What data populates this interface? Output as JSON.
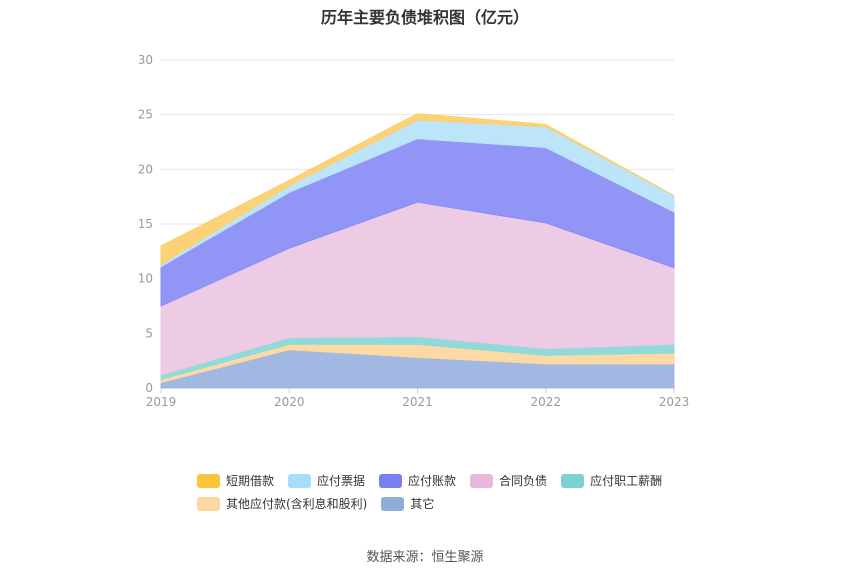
{
  "title": "历年主要负债堆积图（亿元）",
  "source": "数据来源：恒生聚源",
  "chart_data": {
    "type": "area",
    "stacked": true,
    "title": "历年主要负债堆积图（亿元）",
    "x": [
      "2019",
      "2020",
      "2021",
      "2022",
      "2023"
    ],
    "ylim": [
      0,
      30
    ],
    "yticks": [
      0,
      5,
      10,
      15,
      20,
      25,
      30
    ],
    "grid": true,
    "legend_position": "bottom",
    "series": [
      {
        "name": "其它",
        "color": "#9bb4e0",
        "values": [
          0.5,
          3.5,
          2.8,
          2.2,
          2.2
        ]
      },
      {
        "name": "其他应付款(含利息和股利)",
        "color": "#fdd8a0",
        "values": [
          0.3,
          0.5,
          1.2,
          0.8,
          1.0
        ]
      },
      {
        "name": "应付职工薪酬",
        "color": "#8bd8d8",
        "values": [
          0.4,
          0.6,
          0.7,
          0.6,
          0.8
        ]
      },
      {
        "name": "合同负债",
        "color": "#ecc8e4",
        "values": [
          6.3,
          8.2,
          12.3,
          11.5,
          7.0
        ]
      },
      {
        "name": "应付账款",
        "color": "#8a8ff5",
        "values": [
          3.6,
          5.1,
          5.8,
          6.9,
          5.1
        ]
      },
      {
        "name": "应付票据",
        "color": "#b8e4fa",
        "values": [
          0.2,
          0.6,
          1.7,
          1.9,
          1.5
        ]
      },
      {
        "name": "短期借款",
        "color": "#fbd070",
        "values": [
          1.7,
          0.5,
          0.6,
          0.2,
          0.0
        ]
      }
    ]
  },
  "legend_colors": {
    "短期借款": "#fbc43a",
    "应付票据": "#a6ddf8",
    "应付账款": "#7a7ff3",
    "合同负债": "#e9b8de",
    "应付职工薪酬": "#7dd3d3",
    "其他应付款(含利息和股利)": "#fdd8a0",
    "其它": "#8fadd9"
  },
  "legend_order": [
    "短期借款",
    "应付票据",
    "应付账款",
    "合同负债",
    "应付职工薪酬",
    "其他应付款(含利息和股利)",
    "其它"
  ]
}
